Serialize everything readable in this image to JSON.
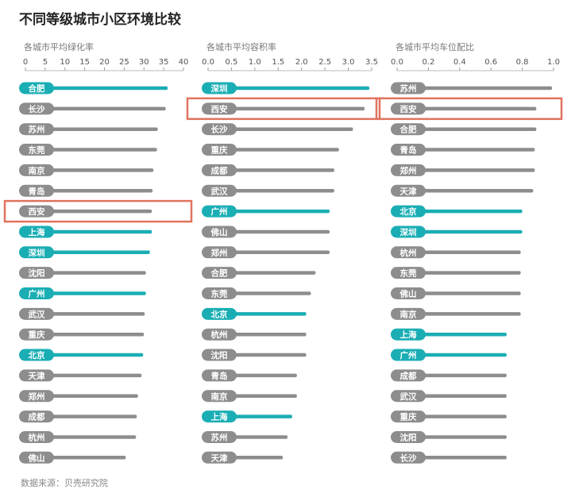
{
  "header": {
    "title": "不同等级城市小区环境比较"
  },
  "footer": {
    "source": "数据来源：贝壳研究院"
  },
  "colors": {
    "gray": "#8d8d8d",
    "teal": "#1aaeb4",
    "highlight_box": "#e0735f"
  },
  "chart_data": [
    {
      "type": "bar",
      "title": "各城市平均绿化率",
      "xlim": [
        0,
        40
      ],
      "ticks": [
        0,
        5,
        10,
        15,
        20,
        25,
        30,
        35,
        40
      ],
      "tick_labels": [
        "0",
        "5",
        "10",
        "15",
        "20",
        "25",
        "30",
        "35",
        "40"
      ],
      "categories": [
        "合肥",
        "长沙",
        "苏州",
        "东莞",
        "南京",
        "青岛",
        "西安",
        "上海",
        "深圳",
        "沈阳",
        "广州",
        "武汉",
        "重庆",
        "北京",
        "天津",
        "郑州",
        "成都",
        "杭州",
        "佛山"
      ],
      "values": [
        36,
        35.5,
        33.5,
        33.3,
        32.4,
        32.2,
        32,
        32,
        31.5,
        30.5,
        30.5,
        30.2,
        30,
        29.8,
        29.4,
        28.5,
        28.2,
        28,
        25.4
      ],
      "highlight": [
        "teal",
        "gray",
        "gray",
        "gray",
        "gray",
        "gray",
        "gray",
        "teal",
        "teal",
        "gray",
        "teal",
        "gray",
        "gray",
        "teal",
        "gray",
        "gray",
        "gray",
        "gray",
        "gray"
      ],
      "boxed": [
        "西安"
      ]
    },
    {
      "type": "bar",
      "title": "各城市平均容积率",
      "xlim": [
        0,
        3.5
      ],
      "ticks": [
        0,
        0.5,
        1,
        1.5,
        2,
        2.5,
        3,
        3.5
      ],
      "tick_labels": [
        "0.0",
        "0.5",
        "1.0",
        "1.5",
        "2.0",
        "2.5",
        "3.0",
        "3.5"
      ],
      "categories": [
        "深圳",
        "西安",
        "长沙",
        "重庆",
        "成都",
        "武汉",
        "广州",
        "佛山",
        "郑州",
        "合肥",
        "东莞",
        "北京",
        "杭州",
        "沈阳",
        "青岛",
        "南京",
        "上海",
        "苏州",
        "天津"
      ],
      "values": [
        3.45,
        3.35,
        3.1,
        2.8,
        2.7,
        2.7,
        2.6,
        2.6,
        2.6,
        2.3,
        2.2,
        2.1,
        2.1,
        2.1,
        1.9,
        1.9,
        1.8,
        1.7,
        1.6
      ],
      "highlight": [
        "teal",
        "gray",
        "gray",
        "gray",
        "gray",
        "gray",
        "teal",
        "gray",
        "gray",
        "gray",
        "gray",
        "teal",
        "gray",
        "gray",
        "gray",
        "gray",
        "teal",
        "gray",
        "gray"
      ],
      "boxed": [
        "西安"
      ]
    },
    {
      "type": "bar",
      "title": "各城市平均车位配比",
      "xlim": [
        0,
        1.0
      ],
      "ticks": [
        0,
        0.2,
        0.4,
        0.6,
        0.8,
        1.0
      ],
      "tick_labels": [
        "0.0",
        "0.2",
        "0.4",
        "0.6",
        "0.8",
        "1.0"
      ],
      "categories": [
        "苏州",
        "西安",
        "合肥",
        "青岛",
        "郑州",
        "天津",
        "北京",
        "深圳",
        "杭州",
        "东莞",
        "佛山",
        "南京",
        "上海",
        "广州",
        "成都",
        "武汉",
        "重庆",
        "沈阳",
        "长沙"
      ],
      "values": [
        0.99,
        0.89,
        0.89,
        0.88,
        0.88,
        0.87,
        0.8,
        0.8,
        0.79,
        0.79,
        0.79,
        0.79,
        0.7,
        0.7,
        0.7,
        0.7,
        0.7,
        0.7,
        0.7
      ],
      "highlight": [
        "gray",
        "gray",
        "gray",
        "gray",
        "gray",
        "gray",
        "teal",
        "teal",
        "gray",
        "gray",
        "gray",
        "gray",
        "teal",
        "teal",
        "gray",
        "gray",
        "gray",
        "gray",
        "gray"
      ],
      "boxed": [
        "西安"
      ]
    }
  ]
}
